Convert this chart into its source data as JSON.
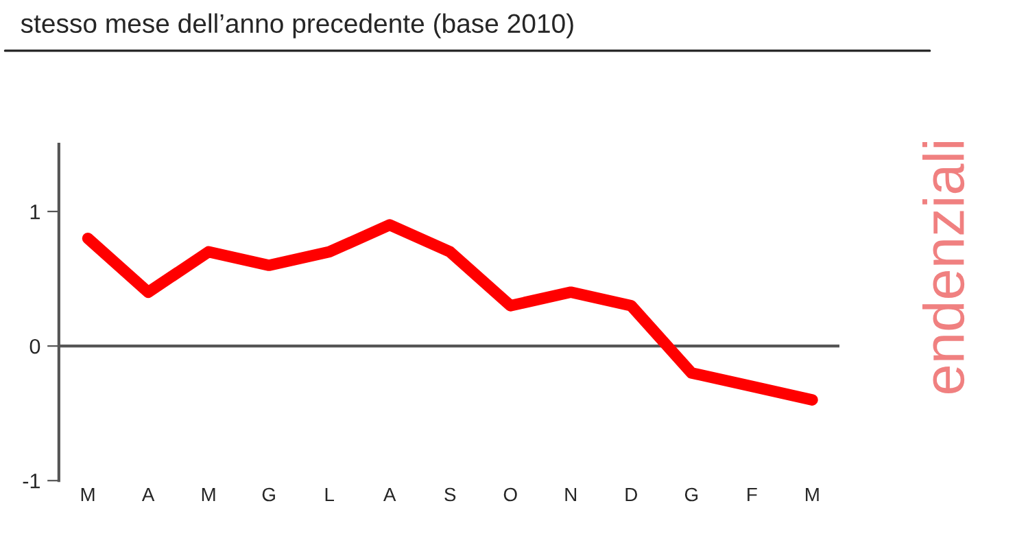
{
  "chart_data": {
    "type": "line",
    "title": "stesso mese dell’anno precedente (base 2010)",
    "categories": [
      "M",
      "A",
      "M",
      "G",
      "L",
      "A",
      "S",
      "O",
      "N",
      "D",
      "G",
      "F",
      "M"
    ],
    "series": [
      {
        "color": "#ff0000",
        "values": [
          0.8,
          0.4,
          0.7,
          0.6,
          0.7,
          0.9,
          0.7,
          0.3,
          0.4,
          0.3,
          -0.2,
          -0.3,
          -0.4
        ]
      }
    ],
    "ylim": [
      -1,
      1.5
    ],
    "yticks": [
      -1,
      0,
      1
    ],
    "ref_lines": [
      {
        "axis": "y",
        "value": 0,
        "color": "#555555"
      }
    ],
    "annotations": [
      "endenziali"
    ],
    "grid": false,
    "legend": false,
    "marker": "none",
    "line_style": "solid"
  }
}
